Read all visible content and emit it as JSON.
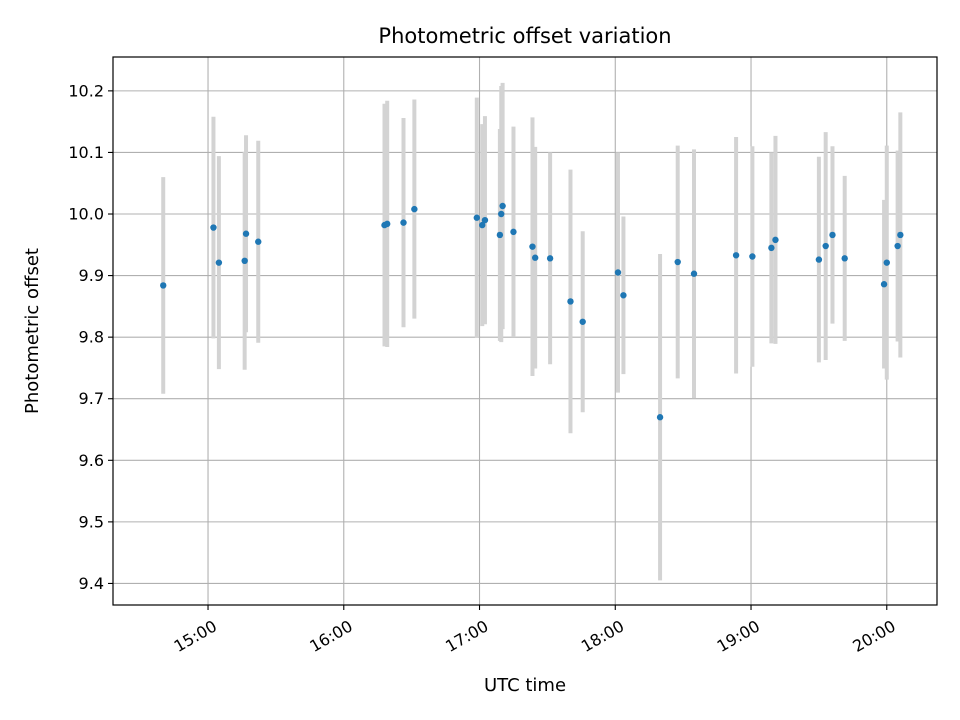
{
  "chart_data": {
    "type": "scatter",
    "title": "Photometric offset variation",
    "xlabel": "UTC time",
    "ylabel": "Photometric offset",
    "x_unit": "hours UTC",
    "xlim": [
      14.3,
      20.37
    ],
    "ylim": [
      9.365,
      10.255
    ],
    "grid": true,
    "x_ticks": [
      {
        "value": 15,
        "label": "15:00"
      },
      {
        "value": 16,
        "label": "16:00"
      },
      {
        "value": 17,
        "label": "17:00"
      },
      {
        "value": 18,
        "label": "18:00"
      },
      {
        "value": 19,
        "label": "19:00"
      },
      {
        "value": 20,
        "label": "20:00"
      }
    ],
    "y_ticks": [
      {
        "value": 9.4,
        "label": "9.4"
      },
      {
        "value": 9.5,
        "label": "9.5"
      },
      {
        "value": 9.6,
        "label": "9.6"
      },
      {
        "value": 9.7,
        "label": "9.7"
      },
      {
        "value": 9.8,
        "label": "9.8"
      },
      {
        "value": 9.9,
        "label": "9.9"
      },
      {
        "value": 10.0,
        "label": "10.0"
      },
      {
        "value": 10.1,
        "label": "10.1"
      },
      {
        "value": 10.2,
        "label": "10.2"
      }
    ],
    "marker_color": "#1f77b4",
    "errorbar_color": "#d3d3d3",
    "series": [
      {
        "name": "Photometric offset",
        "points": [
          {
            "x": 14.67,
            "y": 9.884,
            "err": 0.176
          },
          {
            "x": 15.04,
            "y": 9.978,
            "err": 0.18
          },
          {
            "x": 15.08,
            "y": 9.921,
            "err": 0.173
          },
          {
            "x": 15.27,
            "y": 9.924,
            "err": 0.177
          },
          {
            "x": 15.28,
            "y": 9.968,
            "err": 0.16
          },
          {
            "x": 15.37,
            "y": 9.955,
            "err": 0.164
          },
          {
            "x": 16.3,
            "y": 9.982,
            "err": 0.197
          },
          {
            "x": 16.32,
            "y": 9.984,
            "err": 0.2
          },
          {
            "x": 16.44,
            "y": 9.986,
            "err": 0.17
          },
          {
            "x": 16.52,
            "y": 10.008,
            "err": 0.178
          },
          {
            "x": 16.98,
            "y": 9.994,
            "err": 0.195
          },
          {
            "x": 17.02,
            "y": 9.982,
            "err": 0.164
          },
          {
            "x": 17.04,
            "y": 9.99,
            "err": 0.169
          },
          {
            "x": 17.15,
            "y": 9.966,
            "err": 0.172
          },
          {
            "x": 17.16,
            "y": 10.0,
            "err": 0.208
          },
          {
            "x": 17.17,
            "y": 10.013,
            "err": 0.2
          },
          {
            "x": 17.25,
            "y": 9.971,
            "err": 0.171
          },
          {
            "x": 17.39,
            "y": 9.947,
            "err": 0.21
          },
          {
            "x": 17.41,
            "y": 9.929,
            "err": 0.18
          },
          {
            "x": 17.52,
            "y": 9.928,
            "err": 0.172
          },
          {
            "x": 17.67,
            "y": 9.858,
            "err": 0.214
          },
          {
            "x": 17.76,
            "y": 9.825,
            "err": 0.147
          },
          {
            "x": 18.02,
            "y": 9.905,
            "err": 0.195
          },
          {
            "x": 18.06,
            "y": 9.868,
            "err": 0.128
          },
          {
            "x": 18.33,
            "y": 9.67,
            "err": 0.265
          },
          {
            "x": 18.46,
            "y": 9.922,
            "err": 0.189
          },
          {
            "x": 18.58,
            "y": 9.903,
            "err": 0.202
          },
          {
            "x": 18.89,
            "y": 9.933,
            "err": 0.192
          },
          {
            "x": 19.01,
            "y": 9.931,
            "err": 0.179
          },
          {
            "x": 19.15,
            "y": 9.945,
            "err": 0.155
          },
          {
            "x": 19.18,
            "y": 9.958,
            "err": 0.169
          },
          {
            "x": 19.5,
            "y": 9.926,
            "err": 0.167
          },
          {
            "x": 19.55,
            "y": 9.948,
            "err": 0.185
          },
          {
            "x": 19.6,
            "y": 9.966,
            "err": 0.144
          },
          {
            "x": 19.69,
            "y": 9.928,
            "err": 0.134
          },
          {
            "x": 19.98,
            "y": 9.886,
            "err": 0.137
          },
          {
            "x": 20.0,
            "y": 9.921,
            "err": 0.19
          },
          {
            "x": 20.08,
            "y": 9.948,
            "err": 0.155
          },
          {
            "x": 20.1,
            "y": 9.966,
            "err": 0.199
          }
        ]
      }
    ]
  }
}
